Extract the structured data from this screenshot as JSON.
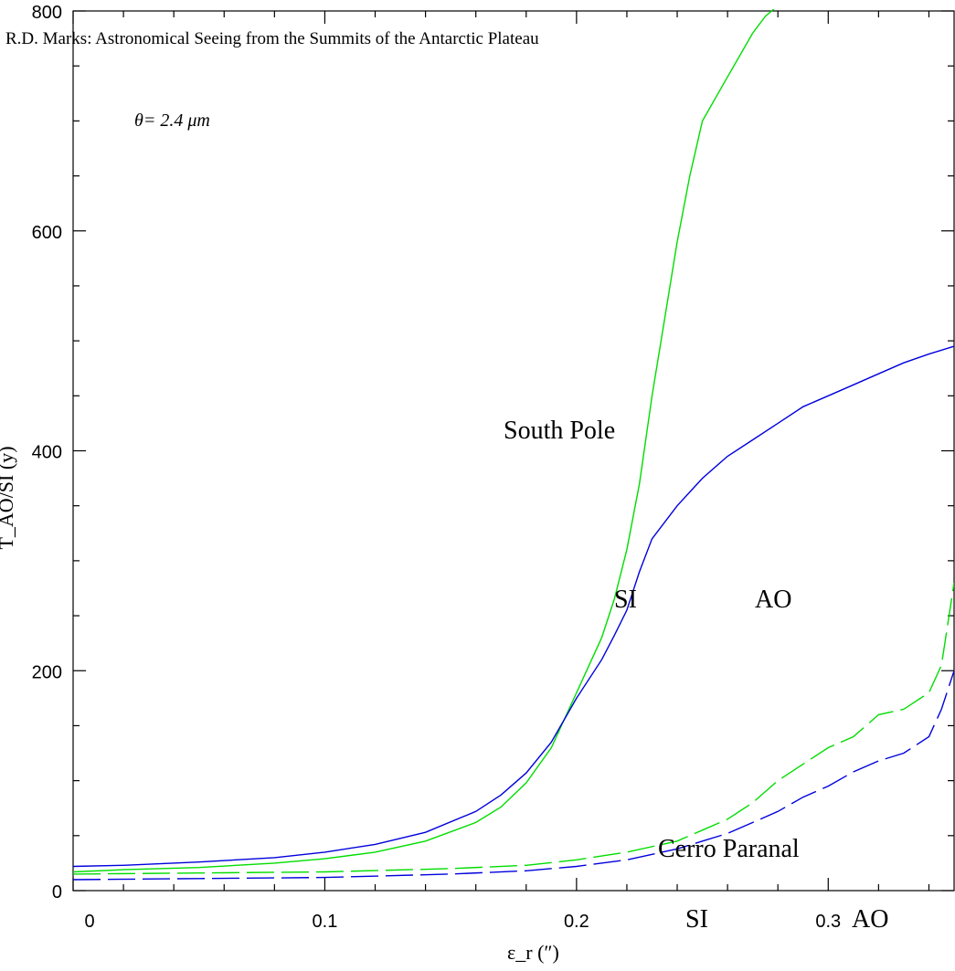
{
  "header": {
    "running_title": "R.D. Marks: Astronomical Seeing from the Summits of the Antarctic Plateau"
  },
  "chart_data": {
    "type": "line",
    "xlabel": "ε_r (″)",
    "ylabel": "T_AO/SI (y)",
    "xlim": [
      0,
      0.35
    ],
    "ylim": [
      0,
      800
    ],
    "x_ticks": [
      0,
      0.1,
      0.2,
      0.3
    ],
    "x_tick_labels": [
      "0",
      "0.1",
      "0.2",
      "0.3"
    ],
    "y_ticks": [
      0,
      200,
      400,
      600,
      800
    ],
    "y_tick_labels": [
      "0",
      "200",
      "400",
      "600",
      "800"
    ],
    "grid": false,
    "annotations": {
      "wavelength": "θ= 2.4 μm",
      "south_pole": "South Pole",
      "cerro_paranal": "Cerro Paranal",
      "si_upper": "SI",
      "ao_upper": "AO",
      "si_lower": "SI",
      "ao_lower": "AO"
    },
    "series": [
      {
        "site": "South Pole",
        "mode": "SI",
        "color": "#00dd00",
        "style": "solid",
        "x": [
          0,
          0.02,
          0.05,
          0.08,
          0.1,
          0.12,
          0.14,
          0.16,
          0.17,
          0.18,
          0.19,
          0.2,
          0.21,
          0.215,
          0.22,
          0.225,
          0.23,
          0.235,
          0.24,
          0.245,
          0.25,
          0.26,
          0.27,
          0.275,
          0.28,
          0.283
        ],
        "y": [
          17,
          19,
          21,
          25,
          29,
          35,
          45,
          62,
          76,
          98,
          130,
          180,
          230,
          265,
          310,
          370,
          450,
          520,
          590,
          650,
          700,
          740,
          780,
          795,
          805,
          815
        ]
      },
      {
        "site": "South Pole",
        "mode": "AO",
        "color": "#0000dd",
        "style": "solid",
        "x": [
          0,
          0.02,
          0.05,
          0.08,
          0.1,
          0.12,
          0.14,
          0.16,
          0.17,
          0.18,
          0.19,
          0.2,
          0.21,
          0.215,
          0.22,
          0.225,
          0.23,
          0.24,
          0.25,
          0.26,
          0.27,
          0.28,
          0.29,
          0.3,
          0.31,
          0.32,
          0.33,
          0.34,
          0.35
        ],
        "y": [
          22,
          23,
          26,
          30,
          35,
          42,
          53,
          72,
          87,
          107,
          135,
          175,
          210,
          232,
          255,
          290,
          320,
          350,
          375,
          395,
          410,
          425,
          440,
          450,
          460,
          470,
          480,
          488,
          495
        ]
      },
      {
        "site": "Cerro Paranal",
        "mode": "SI",
        "color": "#00dd00",
        "style": "dashed",
        "x": [
          0,
          0.05,
          0.1,
          0.15,
          0.18,
          0.2,
          0.22,
          0.24,
          0.25,
          0.26,
          0.27,
          0.28,
          0.29,
          0.3,
          0.31,
          0.32,
          0.33,
          0.34,
          0.345,
          0.35
        ],
        "y": [
          15,
          16,
          17,
          20,
          23,
          28,
          35,
          45,
          55,
          65,
          80,
          100,
          115,
          130,
          140,
          160,
          165,
          180,
          205,
          280
        ]
      },
      {
        "site": "Cerro Paranal",
        "mode": "AO",
        "color": "#0000dd",
        "style": "dashed",
        "x": [
          0,
          0.05,
          0.1,
          0.15,
          0.18,
          0.2,
          0.22,
          0.24,
          0.25,
          0.26,
          0.27,
          0.28,
          0.29,
          0.3,
          0.31,
          0.32,
          0.33,
          0.34,
          0.345,
          0.35
        ],
        "y": [
          10,
          11,
          12,
          15,
          18,
          22,
          28,
          38,
          45,
          52,
          62,
          72,
          85,
          95,
          108,
          118,
          125,
          140,
          165,
          200
        ]
      }
    ]
  }
}
